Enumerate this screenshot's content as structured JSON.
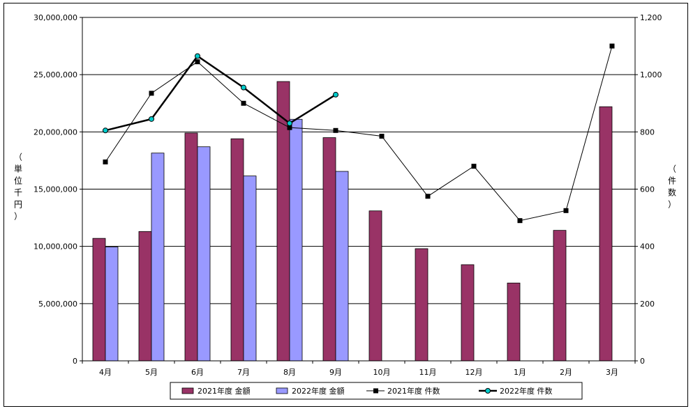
{
  "chart_data": {
    "type": "bar",
    "categories": [
      "4月",
      "5月",
      "6月",
      "7月",
      "8月",
      "9月",
      "10月",
      "11月",
      "12月",
      "1月",
      "2月",
      "3月"
    ],
    "series": [
      {
        "name": "2021年度 金額",
        "kind": "bar",
        "axis": "left",
        "color": "#993366",
        "values": [
          10700000,
          11300000,
          19900000,
          19400000,
          24400000,
          19500000,
          13100000,
          9800000,
          8400000,
          6800000,
          11400000,
          22200000
        ]
      },
      {
        "name": "2022年度 金額",
        "kind": "bar",
        "axis": "left",
        "color": "#9999FF",
        "values": [
          9950000,
          18150000,
          18700000,
          16150000,
          21100000,
          16550000,
          null,
          null,
          null,
          null,
          null,
          null
        ]
      },
      {
        "name": "2021年度 件数",
        "kind": "line",
        "axis": "right",
        "color": "#000000",
        "marker": "square",
        "values": [
          695,
          935,
          1045,
          900,
          815,
          805,
          785,
          575,
          680,
          490,
          525,
          1100
        ]
      },
      {
        "name": "2022年度 件数",
        "kind": "line",
        "axis": "right",
        "color": "#000000",
        "marker": "circle",
        "marker_color": "#00CCCC",
        "values": [
          805,
          845,
          1065,
          955,
          830,
          930,
          null,
          null,
          null,
          null,
          null,
          null
        ]
      }
    ],
    "ylim": [
      0,
      30000000
    ],
    "y2lim": [
      0,
      1200
    ],
    "yticks": [
      "0",
      "5,000,000",
      "10,000,000",
      "15,000,000",
      "20,000,000",
      "25,000,000",
      "30,000,000"
    ],
    "y2ticks": [
      "0",
      "200",
      "400",
      "600",
      "800",
      "1,000",
      "1,200"
    ],
    "ylabel": "（単位千円）",
    "y2label": "（件数）",
    "grid": true,
    "legend_position": "bottom"
  }
}
